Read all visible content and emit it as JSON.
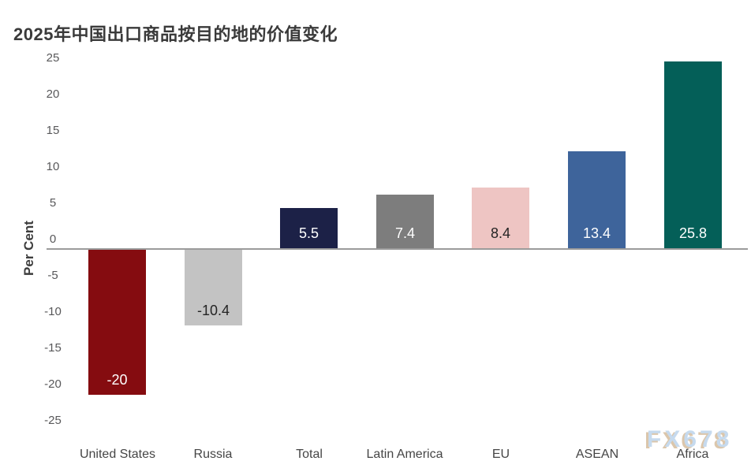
{
  "chart_data": {
    "type": "bar",
    "title": "2025年中国出口商品按目的地的价值变化",
    "ylabel": "Per Cent",
    "categories": [
      "United States",
      "Russia",
      "Total",
      "Latin America",
      "EU",
      "ASEAN",
      "Africa"
    ],
    "values": [
      -20,
      -10.4,
      5.5,
      7.4,
      8.4,
      13.4,
      25.8
    ],
    "value_labels": [
      "-20",
      "-10.4",
      "5.5",
      "7.4",
      "8.4",
      "13.4",
      "25.8"
    ],
    "bar_colors": [
      "#850c10",
      "#c3c3c3",
      "#1c2147",
      "#7d7d7d",
      "#eec5c3",
      "#3e649b",
      "#045f58"
    ],
    "value_label_colors": [
      "#ffffff",
      "#242424",
      "#ffffff",
      "#ffffff",
      "#242424",
      "#ffffff",
      "#ffffff"
    ],
    "ylim": [
      -25,
      25
    ],
    "yticks": [
      25,
      20,
      15,
      10,
      5,
      0,
      -5,
      -10,
      -15,
      -20,
      -25
    ],
    "grid": false,
    "legend": null,
    "baseline_color": "#9b9b9b",
    "axis_text_color": "#58585a"
  },
  "watermark": {
    "text": "FX678",
    "color": "#c6daee",
    "shadow_color": "#dbc6ab"
  }
}
